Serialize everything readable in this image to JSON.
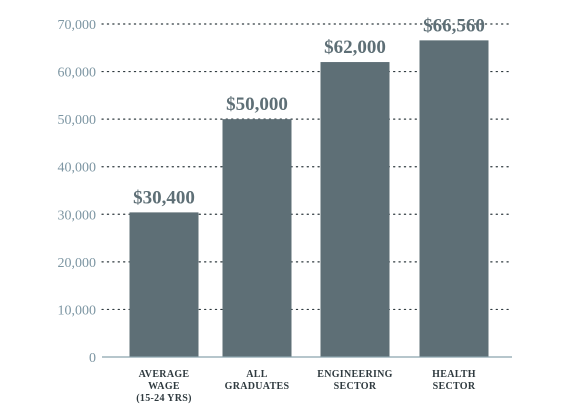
{
  "chart_data": {
    "type": "bar",
    "title": "",
    "xlabel": "",
    "ylabel": "",
    "ylim": [
      0,
      70000
    ],
    "yticks": [
      {
        "value": 0,
        "label": "0"
      },
      {
        "value": 10000,
        "label": "10,000"
      },
      {
        "value": 20000,
        "label": "20,000"
      },
      {
        "value": 30000,
        "label": "30,000"
      },
      {
        "value": 40000,
        "label": "40,000"
      },
      {
        "value": 50000,
        "label": "50,000"
      },
      {
        "value": 60000,
        "label": "60,000"
      },
      {
        "value": 70000,
        "label": "70,000"
      }
    ],
    "grid": true,
    "categories": [
      [
        "AVERAGE",
        "WAGE",
        "(15-24 YRS)"
      ],
      [
        "ALL",
        "GRADUATES"
      ],
      [
        "ENGINEERING",
        "SECTOR"
      ],
      [
        "HEALTH",
        "SECTOR"
      ]
    ],
    "values": [
      30400,
      50000,
      62000,
      66560
    ],
    "value_labels": [
      "$30,400",
      "$50,000",
      "$62,000",
      "$66,560"
    ]
  },
  "colors": {
    "bar": "#5e6f76",
    "tick_text": "#7d96a3",
    "label_text": "#5e6f76",
    "grid": "#2f3a3f",
    "axis": "#8aa3ad"
  }
}
